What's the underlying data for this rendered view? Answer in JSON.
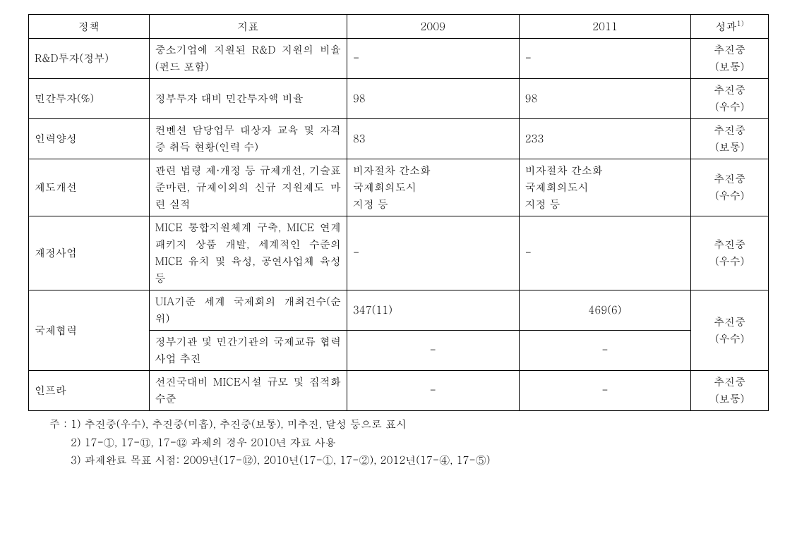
{
  "headers": {
    "policy": "정책",
    "indicator": "지표",
    "y2009": "2009",
    "y2011": "2011",
    "result": "성과",
    "result_sup": "1)"
  },
  "rows": [
    {
      "policy": "R&D투자(정부)",
      "indicator": "중소기업에 지원된 R&D 지원의 비율 (펀드 포함)",
      "y2009": "-",
      "y2011": "-",
      "result": "추진중\n(보통)",
      "indicator_class": "justify-left",
      "y2009_align": "left",
      "y2011_align": "left"
    },
    {
      "policy": "민간투자(%)",
      "indicator": "정부투자 대비 민간투자액 비율",
      "y2009": "98",
      "y2011": "98",
      "result": "추진중\n(우수)",
      "indicator_class": "justify-left",
      "y2009_align": "left",
      "y2011_align": "left"
    },
    {
      "policy": "인력양성",
      "indicator": "컨벤션 담당업무 대상자 교육 및 자격증 취득 현황(인력 수)",
      "y2009": "83",
      "y2011": "233",
      "result": "추진중\n(보통)",
      "indicator_class": "justify-left",
      "y2009_align": "left",
      "y2011_align": "left"
    },
    {
      "policy": "제도개선",
      "indicator": "관련 법령 제·개정 등 규제개선, 기술표준마련, 규제이외의 신규 지원제도 마련 실적",
      "y2009": "비자절차 간소화\n국제회의도시\n지정 등",
      "y2011": "비자절차 간소화\n국제회의도시\n지정 등",
      "result": "추진중\n(우수)",
      "indicator_class": "justify-left",
      "y2009_align": "left",
      "y2011_align": "left",
      "multiline": true
    },
    {
      "policy": "재정사업",
      "indicator": "MICE 통합지원체계 구축, MICE 연계패키지 상품 개발, 세계적인 수준의 MICE 유치 및 육성, 공연사업체 육성 등",
      "y2009": "-",
      "y2011": "-",
      "result": "추진중\n(우수)",
      "indicator_class": "justify-left",
      "y2009_align": "left",
      "y2011_align": "left"
    }
  ],
  "coop": {
    "policy": "국제협력",
    "ind1": "UIA기준 세계 국제회의 개최건수(순위)",
    "y2009_1": "347(11)",
    "y2011_1": "469(6)",
    "ind2": "정부기관 및 민간기관의 국제교류 협력사업 추진",
    "y2009_2": "-",
    "y2011_2": "-",
    "result": "추진중\n(우수)"
  },
  "infra": {
    "policy": "인프라",
    "indicator": "선진국대비 MICE시설 규모 및 집적화 수준",
    "y2009": "-",
    "y2011": "-",
    "result": "추진중\n(보통)"
  },
  "notes": {
    "n1": "주 : 1) 추진중(우수), 추진중(미흡), 추진중(보통), 미추진, 달성 등으로 표시",
    "n2": "      2) 17-①, 17-⑪, 17-⑫ 과제의 경우 2010년 자료 사용",
    "n3": "      3) 과제완료 목표 시점: 2009년(17-⑫), 2010년(17-①, 17-②), 2012년(17-④, 17-⑤)"
  }
}
